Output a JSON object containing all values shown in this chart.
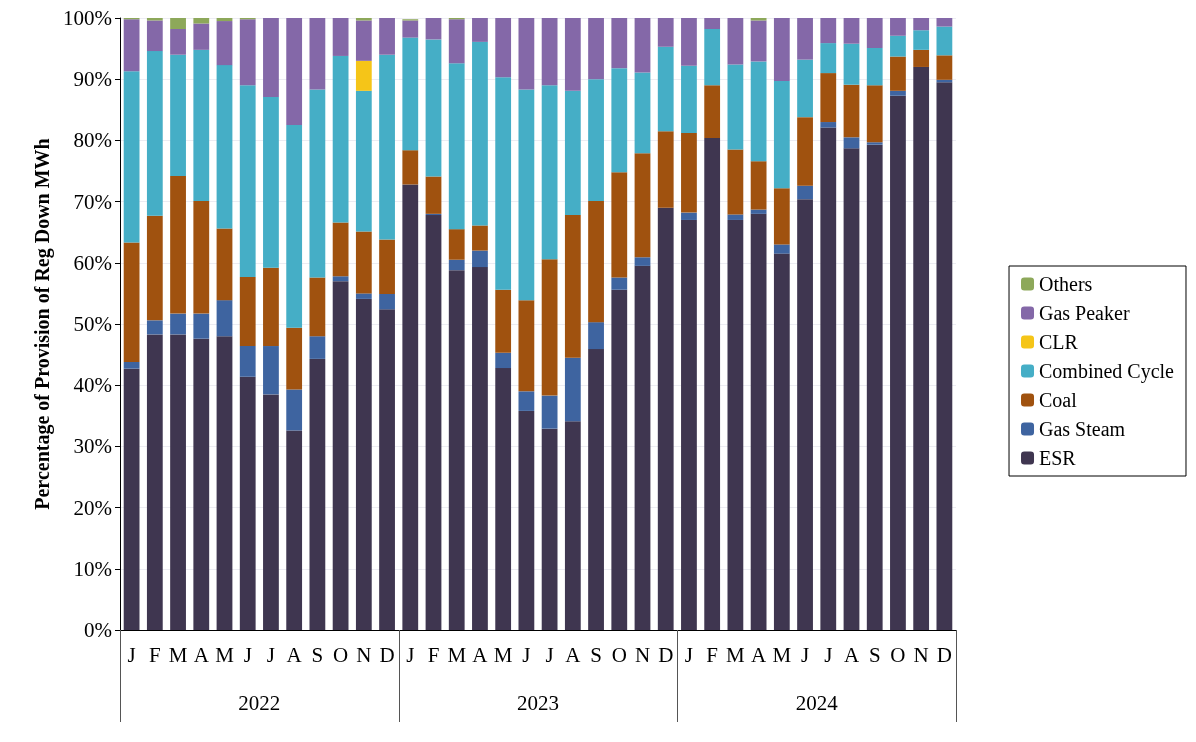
{
  "chart_data": {
    "type": "bar",
    "stacked": true,
    "ylabel": "Percentage of Provision of Reg Down MWh",
    "categories": [
      "J",
      "F",
      "M",
      "A",
      "M",
      "J",
      "J",
      "A",
      "S",
      "O",
      "N",
      "D",
      "J",
      "F",
      "M",
      "A",
      "M",
      "J",
      "J",
      "A",
      "S",
      "O",
      "N",
      "D",
      "J",
      "F",
      "M",
      "A",
      "M",
      "J",
      "J",
      "A",
      "S",
      "O",
      "N",
      "D"
    ],
    "annotations": [
      "2022",
      "2023",
      "2024"
    ],
    "series": [
      {
        "name": "ESR",
        "color": "#3f3650",
        "values": [
          42.7,
          48.3,
          48.3,
          47.6,
          48.0,
          41.4,
          38.5,
          32.6,
          44.3,
          57.0,
          54.1,
          52.4,
          72.8,
          67.8,
          58.8,
          59.3,
          42.8,
          35.8,
          32.9,
          34.1,
          45.9,
          55.6,
          59.5,
          69.0,
          67.0,
          80.4,
          67.0,
          68.0,
          61.5,
          70.4,
          82.1,
          78.7,
          79.3,
          87.3,
          92.0,
          89.5
        ]
      },
      {
        "name": "Gas Steam",
        "color": "#3e64a0",
        "values": [
          1.1,
          2.3,
          3.4,
          4.1,
          5.9,
          5.0,
          7.9,
          6.7,
          3.7,
          0.8,
          0.9,
          2.5,
          null,
          0.2,
          1.7,
          2.7,
          2.5,
          3.2,
          5.4,
          10.4,
          4.4,
          2.0,
          1.4,
          0,
          1.2,
          0,
          0.9,
          0.7,
          1.5,
          2.2,
          0.9,
          1.8,
          0.4,
          0.8,
          0,
          0.4
        ]
      },
      {
        "name": "Coal",
        "color": "#a0520f",
        "values": [
          19.5,
          17.1,
          22.5,
          18.4,
          11.7,
          11.3,
          12.8,
          10.1,
          9.6,
          8.8,
          10.1,
          8.9,
          5.6,
          6.1,
          5.0,
          4.1,
          10.3,
          14.9,
          22.3,
          23.3,
          19.8,
          17.2,
          17.0,
          12.5,
          13.0,
          8.6,
          10.6,
          7.9,
          9.2,
          11.2,
          8.0,
          8.6,
          9.3,
          5.6,
          2.8,
          4.0
        ]
      },
      {
        "name": "Combined Cycle",
        "color": "#45aec6",
        "values": [
          28.0,
          26.9,
          19.8,
          24.7,
          26.7,
          31.3,
          27.9,
          33.1,
          30.7,
          27.2,
          23.0,
          30.2,
          18.4,
          22.4,
          27.1,
          30.0,
          34.7,
          34.4,
          28.4,
          20.3,
          19.9,
          17.0,
          13.2,
          13.8,
          11.0,
          9.2,
          13.9,
          16.3,
          17.5,
          9.4,
          4.9,
          6.7,
          6.1,
          3.4,
          3.2,
          4.7
        ]
      },
      {
        "name": "CLR",
        "color": "#f5c518",
        "values": [
          0,
          0,
          0,
          0,
          0,
          0,
          0,
          0,
          0,
          0,
          4.9,
          0,
          0,
          0,
          0,
          0,
          0,
          0,
          0,
          0,
          0,
          0,
          0,
          0,
          0,
          0,
          0,
          0,
          0,
          0,
          0,
          0,
          0,
          0,
          0,
          0
        ]
      },
      {
        "name": "Gas Peaker",
        "color": "#8468a8",
        "values": [
          8.5,
          5.0,
          4.2,
          4.3,
          7.2,
          10.8,
          12.9,
          17.5,
          11.7,
          6.2,
          6.6,
          6.0,
          2.8,
          3.5,
          7.2,
          3.9,
          9.7,
          11.7,
          11.0,
          11.9,
          10.0,
          8.2,
          8.9,
          4.7,
          7.8,
          1.8,
          7.6,
          6.7,
          10.3,
          6.8,
          4.1,
          4.2,
          4.9,
          2.9,
          2.0,
          1.4
        ]
      },
      {
        "name": "Others",
        "color": "#8da85a",
        "values": [
          0.2,
          0.4,
          1.8,
          0.9,
          0.5,
          0.2,
          0,
          0,
          0,
          0,
          0.4,
          0,
          0.2,
          0,
          0.2,
          0,
          0,
          0,
          0,
          0,
          0,
          0,
          0,
          0,
          0,
          0,
          0,
          0.4,
          0,
          0,
          0,
          0,
          0,
          0,
          0,
          0
        ]
      }
    ],
    "ylim": [
      0,
      100
    ],
    "yticks": [
      {
        "value": 0,
        "label": "0%"
      },
      {
        "value": 10,
        "label": "10%"
      },
      {
        "value": 20,
        "label": "20%"
      },
      {
        "value": 30,
        "label": "30%"
      },
      {
        "value": 40,
        "label": "40%"
      },
      {
        "value": 50,
        "label": "50%"
      },
      {
        "value": 60,
        "label": "60%"
      },
      {
        "value": 70,
        "label": "70%"
      },
      {
        "value": 80,
        "label": "80%"
      },
      {
        "value": 90,
        "label": "90%"
      },
      {
        "value": 100,
        "label": "100%"
      }
    ],
    "grid": "y",
    "legend": "right"
  }
}
